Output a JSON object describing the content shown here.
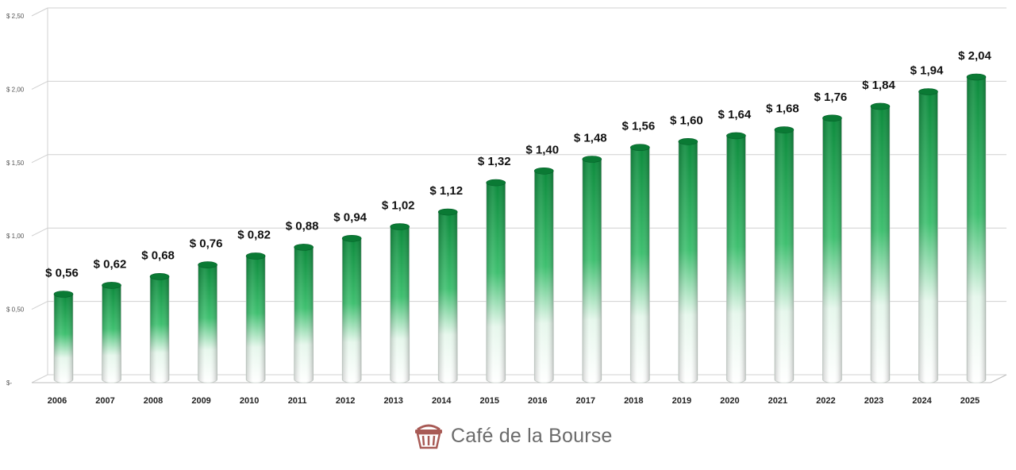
{
  "chart_data": {
    "type": "bar",
    "categories": [
      "2006",
      "2007",
      "2008",
      "2009",
      "2010",
      "2011",
      "2012",
      "2013",
      "2014",
      "2015",
      "2016",
      "2017",
      "2018",
      "2019",
      "2020",
      "2021",
      "2022",
      "2023",
      "2024",
      "2025"
    ],
    "values": [
      0.56,
      0.62,
      0.68,
      0.76,
      0.82,
      0.88,
      0.94,
      1.02,
      1.12,
      1.32,
      1.4,
      1.48,
      1.56,
      1.6,
      1.64,
      1.68,
      1.76,
      1.84,
      1.94,
      2.04
    ],
    "data_labels": [
      "$ 0,56",
      "$ 0,62",
      "$ 0,68",
      "$ 0,76",
      "$ 0,82",
      "$ 0,88",
      "$ 0,94",
      "$ 1,02",
      "$ 1,12",
      "$ 1,32",
      "$ 1,40",
      "$ 1,48",
      "$ 1,56",
      "$ 1,60",
      "$ 1,64",
      "$ 1,68",
      "$ 1,76",
      "$ 1,84",
      "$ 1,94",
      "$ 2,04"
    ],
    "yticks": [
      0,
      0.5,
      1.0,
      1.5,
      2.0,
      2.5
    ],
    "ytick_labels": [
      "$-",
      "$ 0,50",
      "$ 1,00",
      "$ 1,50",
      "$ 2,00",
      "$ 2,50"
    ],
    "ylim": [
      0,
      2.5
    ],
    "title": "",
    "xlabel": "",
    "ylabel": "",
    "grid": true,
    "legend": "none",
    "colors": {
      "bar_top": "#0f9a45",
      "bar_bottom": "#ffffff",
      "grid": "#d0d0d0"
    }
  },
  "branding": {
    "logo_text": "Café de la Bourse",
    "logo_icon": "basket-icon",
    "logo_color": "#a85a55"
  }
}
